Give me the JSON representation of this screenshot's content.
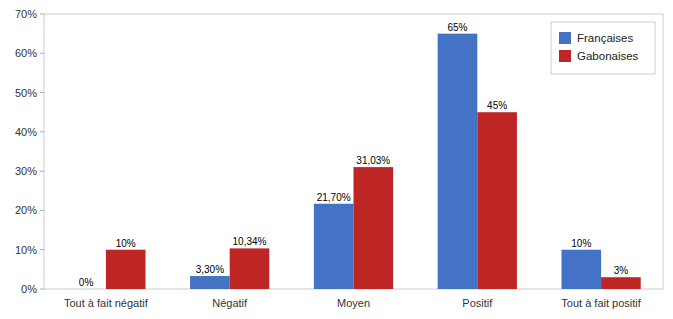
{
  "chart_data": {
    "type": "bar",
    "categories": [
      "Tout à fait négatif",
      "Négatif",
      "Moyen",
      "Positif",
      "Tout à fait positif"
    ],
    "series": [
      {
        "name": "Françaises",
        "color": "#4472C4",
        "values": [
          0.0,
          3.3,
          21.7,
          65.0,
          10.0
        ],
        "value_labels": [
          "0%",
          "3,30%",
          "21,70%",
          "65%",
          "10%"
        ]
      },
      {
        "name": "Gabonaises",
        "color": "#BE2625",
        "values": [
          10.0,
          10.34,
          31.03,
          45.0,
          3.0
        ],
        "value_labels": [
          "10%",
          "10,34%",
          "31,03%",
          "45%",
          "3%"
        ]
      }
    ],
    "ylim": [
      0,
      70
    ],
    "yticks": [
      {
        "value": 0,
        "label": "0%"
      },
      {
        "value": 10,
        "label": "10%"
      },
      {
        "value": 20,
        "label": "20%"
      },
      {
        "value": 30,
        "label": "30%"
      },
      {
        "value": 40,
        "label": "40%"
      },
      {
        "value": 50,
        "label": "50%"
      },
      {
        "value": 60,
        "label": "60%"
      },
      {
        "value": 70,
        "label": "70%"
      }
    ],
    "grid": false,
    "legend": "upper right",
    "data_labels": true
  }
}
